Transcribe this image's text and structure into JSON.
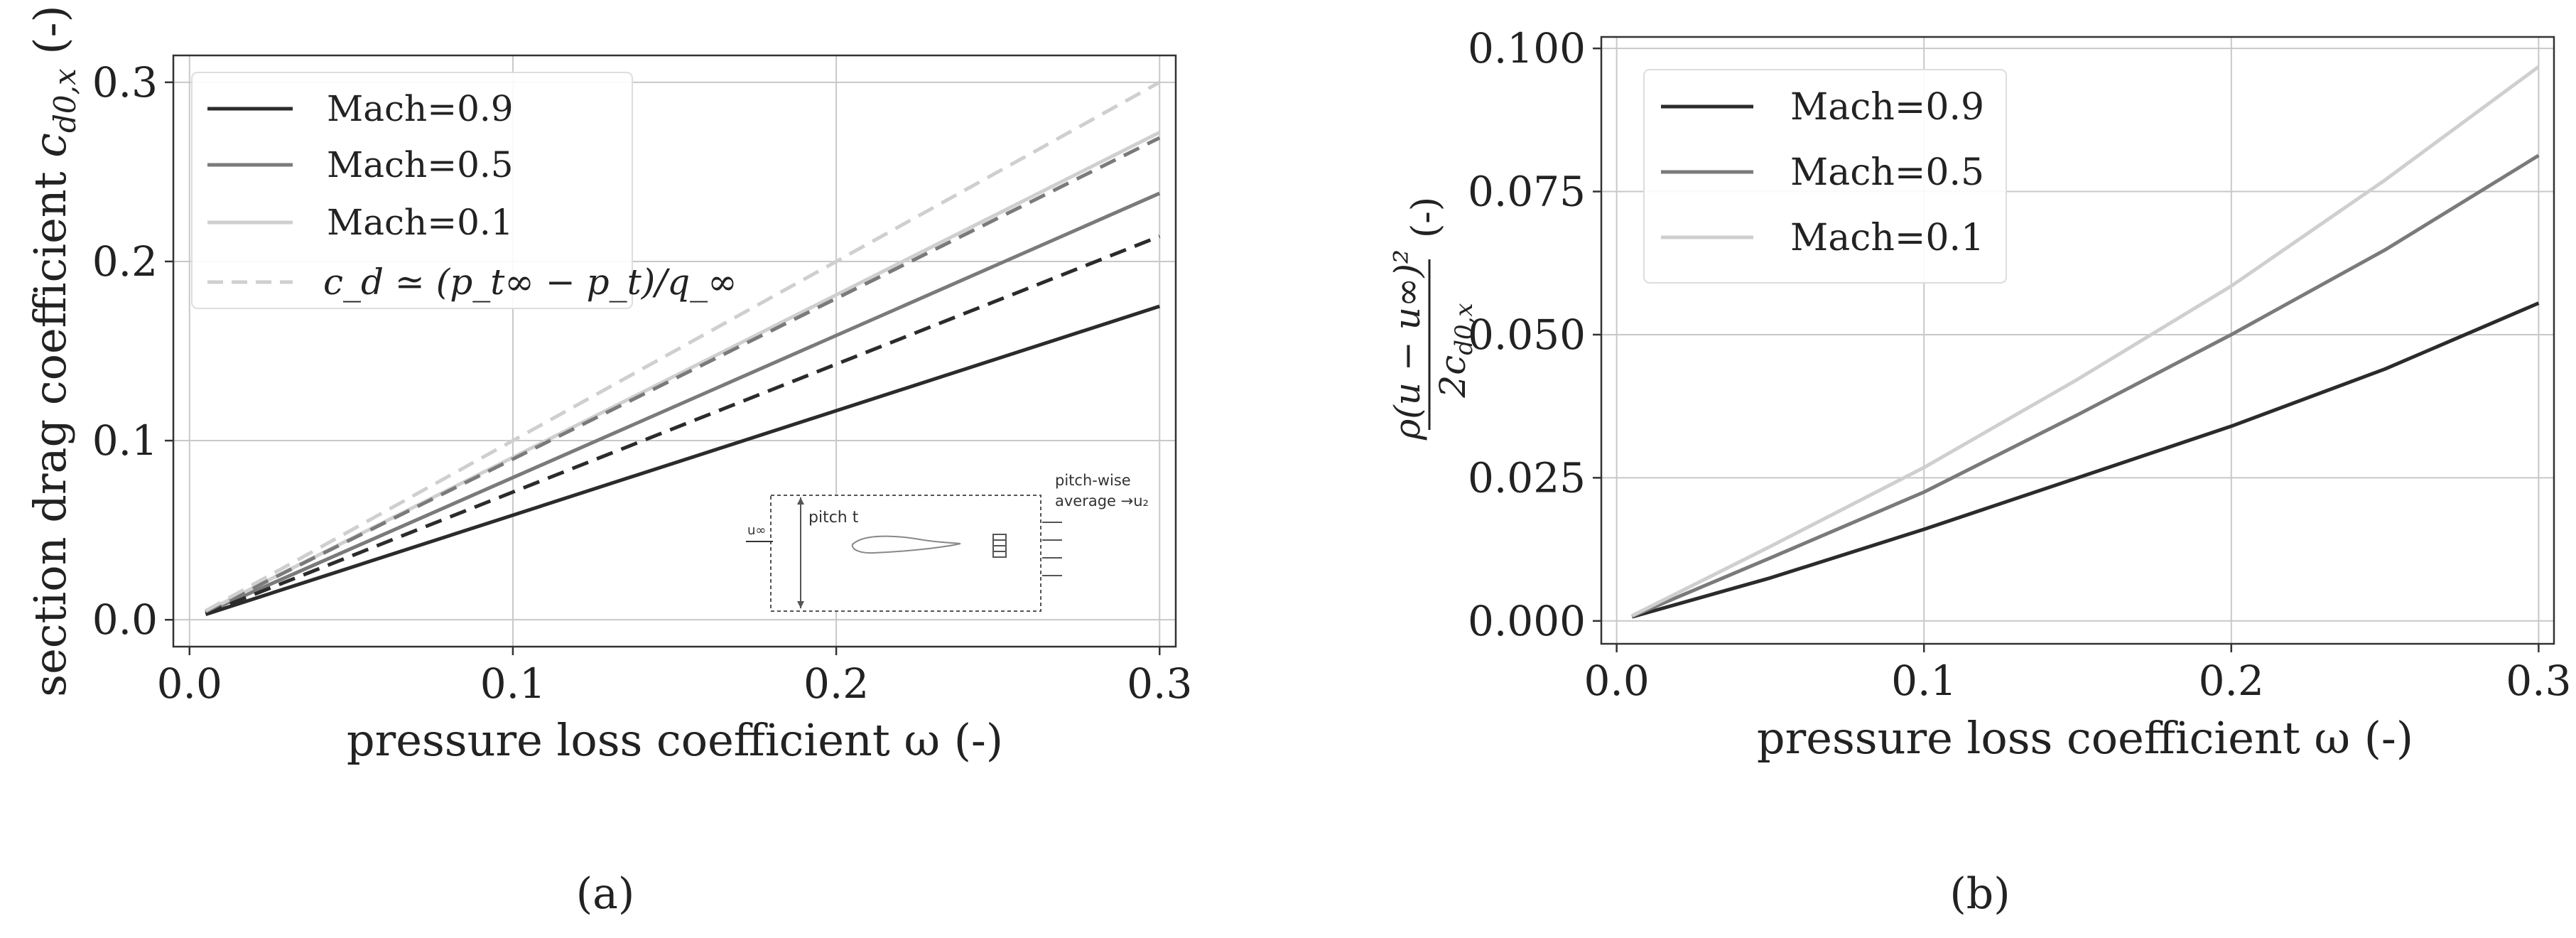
{
  "chart_data": [
    {
      "type": "line",
      "panel_label": "(a)",
      "xlabel": "pressure loss coefficient ω (-)",
      "ylabel_text": "section drag coefficient ",
      "ylabel_math": "c",
      "ylabel_sub": "d0,x",
      "ylabel_unit": " (-)",
      "xlim": [
        -0.005,
        0.305
      ],
      "ylim": [
        -0.015,
        0.315
      ],
      "xticks": [
        0.0,
        0.1,
        0.2,
        0.3
      ],
      "xtick_labels": [
        "0.0",
        "0.1",
        "0.2",
        "0.3"
      ],
      "yticks": [
        0.0,
        0.1,
        0.2,
        0.3
      ],
      "ytick_labels": [
        "0.0",
        "0.1",
        "0.2",
        "0.3"
      ],
      "grid": true,
      "legend_position": "top-left",
      "x": [
        0.005,
        0.3
      ],
      "series": [
        {
          "name": "Mach=0.9",
          "color": "#2b2b2b",
          "style": "solid",
          "values": [
            0.003,
            0.175
          ]
        },
        {
          "name": "Mach=0.5",
          "color": "#7a7a7a",
          "style": "solid",
          "values": [
            0.004,
            0.238
          ]
        },
        {
          "name": "Mach=0.1",
          "color": "#cfcfcf",
          "style": "solid",
          "values": [
            0.0045,
            0.272
          ]
        },
        {
          "name": "",
          "color": "#2b2b2b",
          "style": "dashed",
          "values": [
            0.0035,
            0.214
          ]
        },
        {
          "name": "",
          "color": "#7a7a7a",
          "style": "dashed",
          "values": [
            0.0045,
            0.269
          ]
        },
        {
          "name": "",
          "color": "#cfcfcf",
          "style": "dashed",
          "values": [
            0.005,
            0.3
          ]
        }
      ],
      "legend": [
        {
          "label": "Mach=0.9",
          "color": "#2b2b2b",
          "style": "solid"
        },
        {
          "label": "Mach=0.5",
          "color": "#7a7a7a",
          "style": "solid"
        },
        {
          "label": "Mach=0.1",
          "color": "#cfcfcf",
          "style": "solid"
        },
        {
          "label": "c_d ≃ (p_t∞ − p_t)/q_∞",
          "color": "#cfcfcf",
          "style": "dashed"
        }
      ],
      "inset": {
        "u_inf_label": "u∞",
        "pitch_label": "pitch t",
        "average_label_line1": "pitch-wise",
        "average_label_line2": "average →u₂"
      }
    },
    {
      "type": "line",
      "panel_label": "(b)",
      "xlabel": "pressure loss coefficient ω (-)",
      "ylabel_numerator": "ρ(u − u∞)²",
      "ylabel_denominator": "2c",
      "ylabel_den_sub": "d0,x",
      "ylabel_unit": "(-)",
      "xlim": [
        -0.005,
        0.305
      ],
      "ylim": [
        -0.004,
        0.102
      ],
      "xticks": [
        0.0,
        0.1,
        0.2,
        0.3
      ],
      "xtick_labels": [
        "0.0",
        "0.1",
        "0.2",
        "0.3"
      ],
      "yticks": [
        0.0,
        0.025,
        0.05,
        0.075,
        0.1
      ],
      "ytick_labels": [
        "0.000",
        "0.025",
        "0.050",
        "0.075",
        "0.100"
      ],
      "grid": true,
      "legend_position": "top-left",
      "x": [
        0.005,
        0.05,
        0.1,
        0.15,
        0.2,
        0.25,
        0.3
      ],
      "series": [
        {
          "name": "Mach=0.9",
          "color": "#2b2b2b",
          "style": "solid",
          "values": [
            0.0007,
            0.0075,
            0.016,
            0.025,
            0.034,
            0.044,
            0.0555
          ]
        },
        {
          "name": "Mach=0.5",
          "color": "#7a7a7a",
          "style": "solid",
          "values": [
            0.0008,
            0.011,
            0.0225,
            0.036,
            0.05,
            0.0648,
            0.0813
          ]
        },
        {
          "name": "Mach=0.1",
          "color": "#cfcfcf",
          "style": "solid",
          "values": [
            0.0009,
            0.013,
            0.0268,
            0.0422,
            0.0585,
            0.077,
            0.0968
          ]
        }
      ],
      "legend": [
        {
          "label": "Mach=0.9",
          "color": "#2b2b2b",
          "style": "solid"
        },
        {
          "label": "Mach=0.5",
          "color": "#7a7a7a",
          "style": "solid"
        },
        {
          "label": "Mach=0.1",
          "color": "#cfcfcf",
          "style": "solid"
        }
      ]
    }
  ]
}
